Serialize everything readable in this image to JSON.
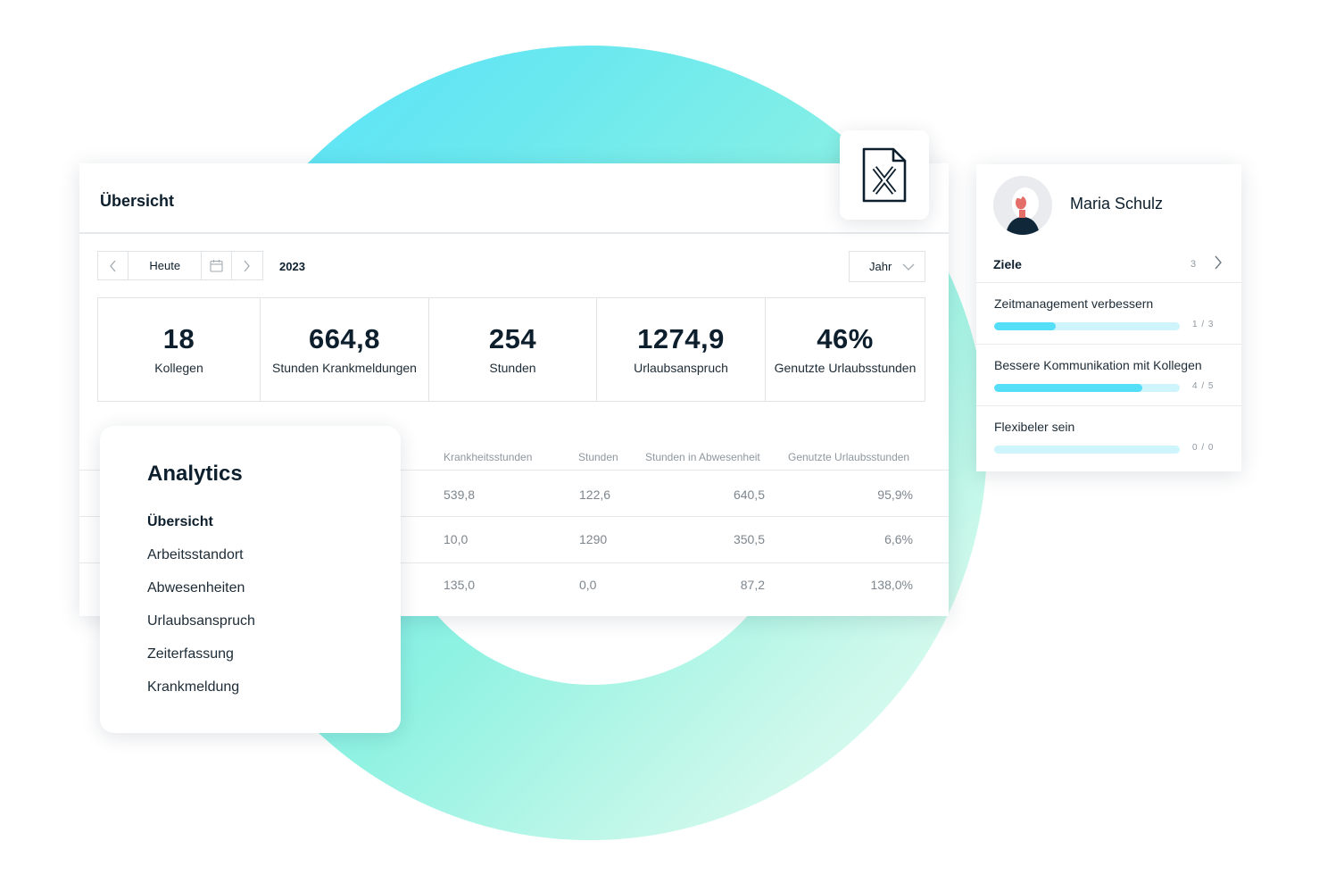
{
  "overview": {
    "title": "Übersicht",
    "today_label": "Heute",
    "year": "2023",
    "period_select": "Jahr",
    "stats": [
      {
        "value": "18",
        "label": "Kollegen"
      },
      {
        "value": "664,8",
        "label": "Stunden Krankmeldungen"
      },
      {
        "value": "254",
        "label": "Stunden"
      },
      {
        "value": "1274,9",
        "label": "Urlaubsanspruch"
      },
      {
        "value": "46%",
        "label": "Genutzte Urlaubsstunden"
      }
    ],
    "table": {
      "columns": [
        "Krankheitsstunden",
        "Stunden",
        "Stunden in Abwesenheit",
        "Genutzte Urlaubsstunden"
      ],
      "rows": [
        [
          "539,8",
          "122,6",
          "640,5",
          "95,9%"
        ],
        [
          "10,0",
          "1290",
          "350,5",
          "6,6%"
        ],
        [
          "135,0",
          "0,0",
          "87,2",
          "138,0%"
        ]
      ]
    }
  },
  "analytics": {
    "title": "Analytics",
    "items": [
      "Übersicht",
      "Arbeitsstandort",
      "Abwesenheiten",
      "Urlaubsanspruch",
      "Zeiterfassung",
      "Krankmeldung"
    ],
    "active_index": 0
  },
  "profile": {
    "name": "Maria Schulz",
    "goals_title": "Ziele",
    "goals_count": "3",
    "goals": [
      {
        "label": "Zeitmanagement verbessern",
        "progress_text": "1 / 3",
        "progress": 0.33
      },
      {
        "label": "Bessere Kommunikation mit Kollegen",
        "progress_text": "4 / 5",
        "progress": 0.8
      },
      {
        "label": "Flexibeler sein",
        "progress_text": "0 / 0",
        "progress": 0
      }
    ]
  },
  "icons": [
    "chevron-left-icon",
    "calendar-icon",
    "chevron-right-icon",
    "chevron-down-icon",
    "excel-file-icon",
    "avatar-illustration"
  ],
  "colors": {
    "accent": "#55def8",
    "track": "#cdf5fb",
    "text": "#0d1f2d"
  }
}
